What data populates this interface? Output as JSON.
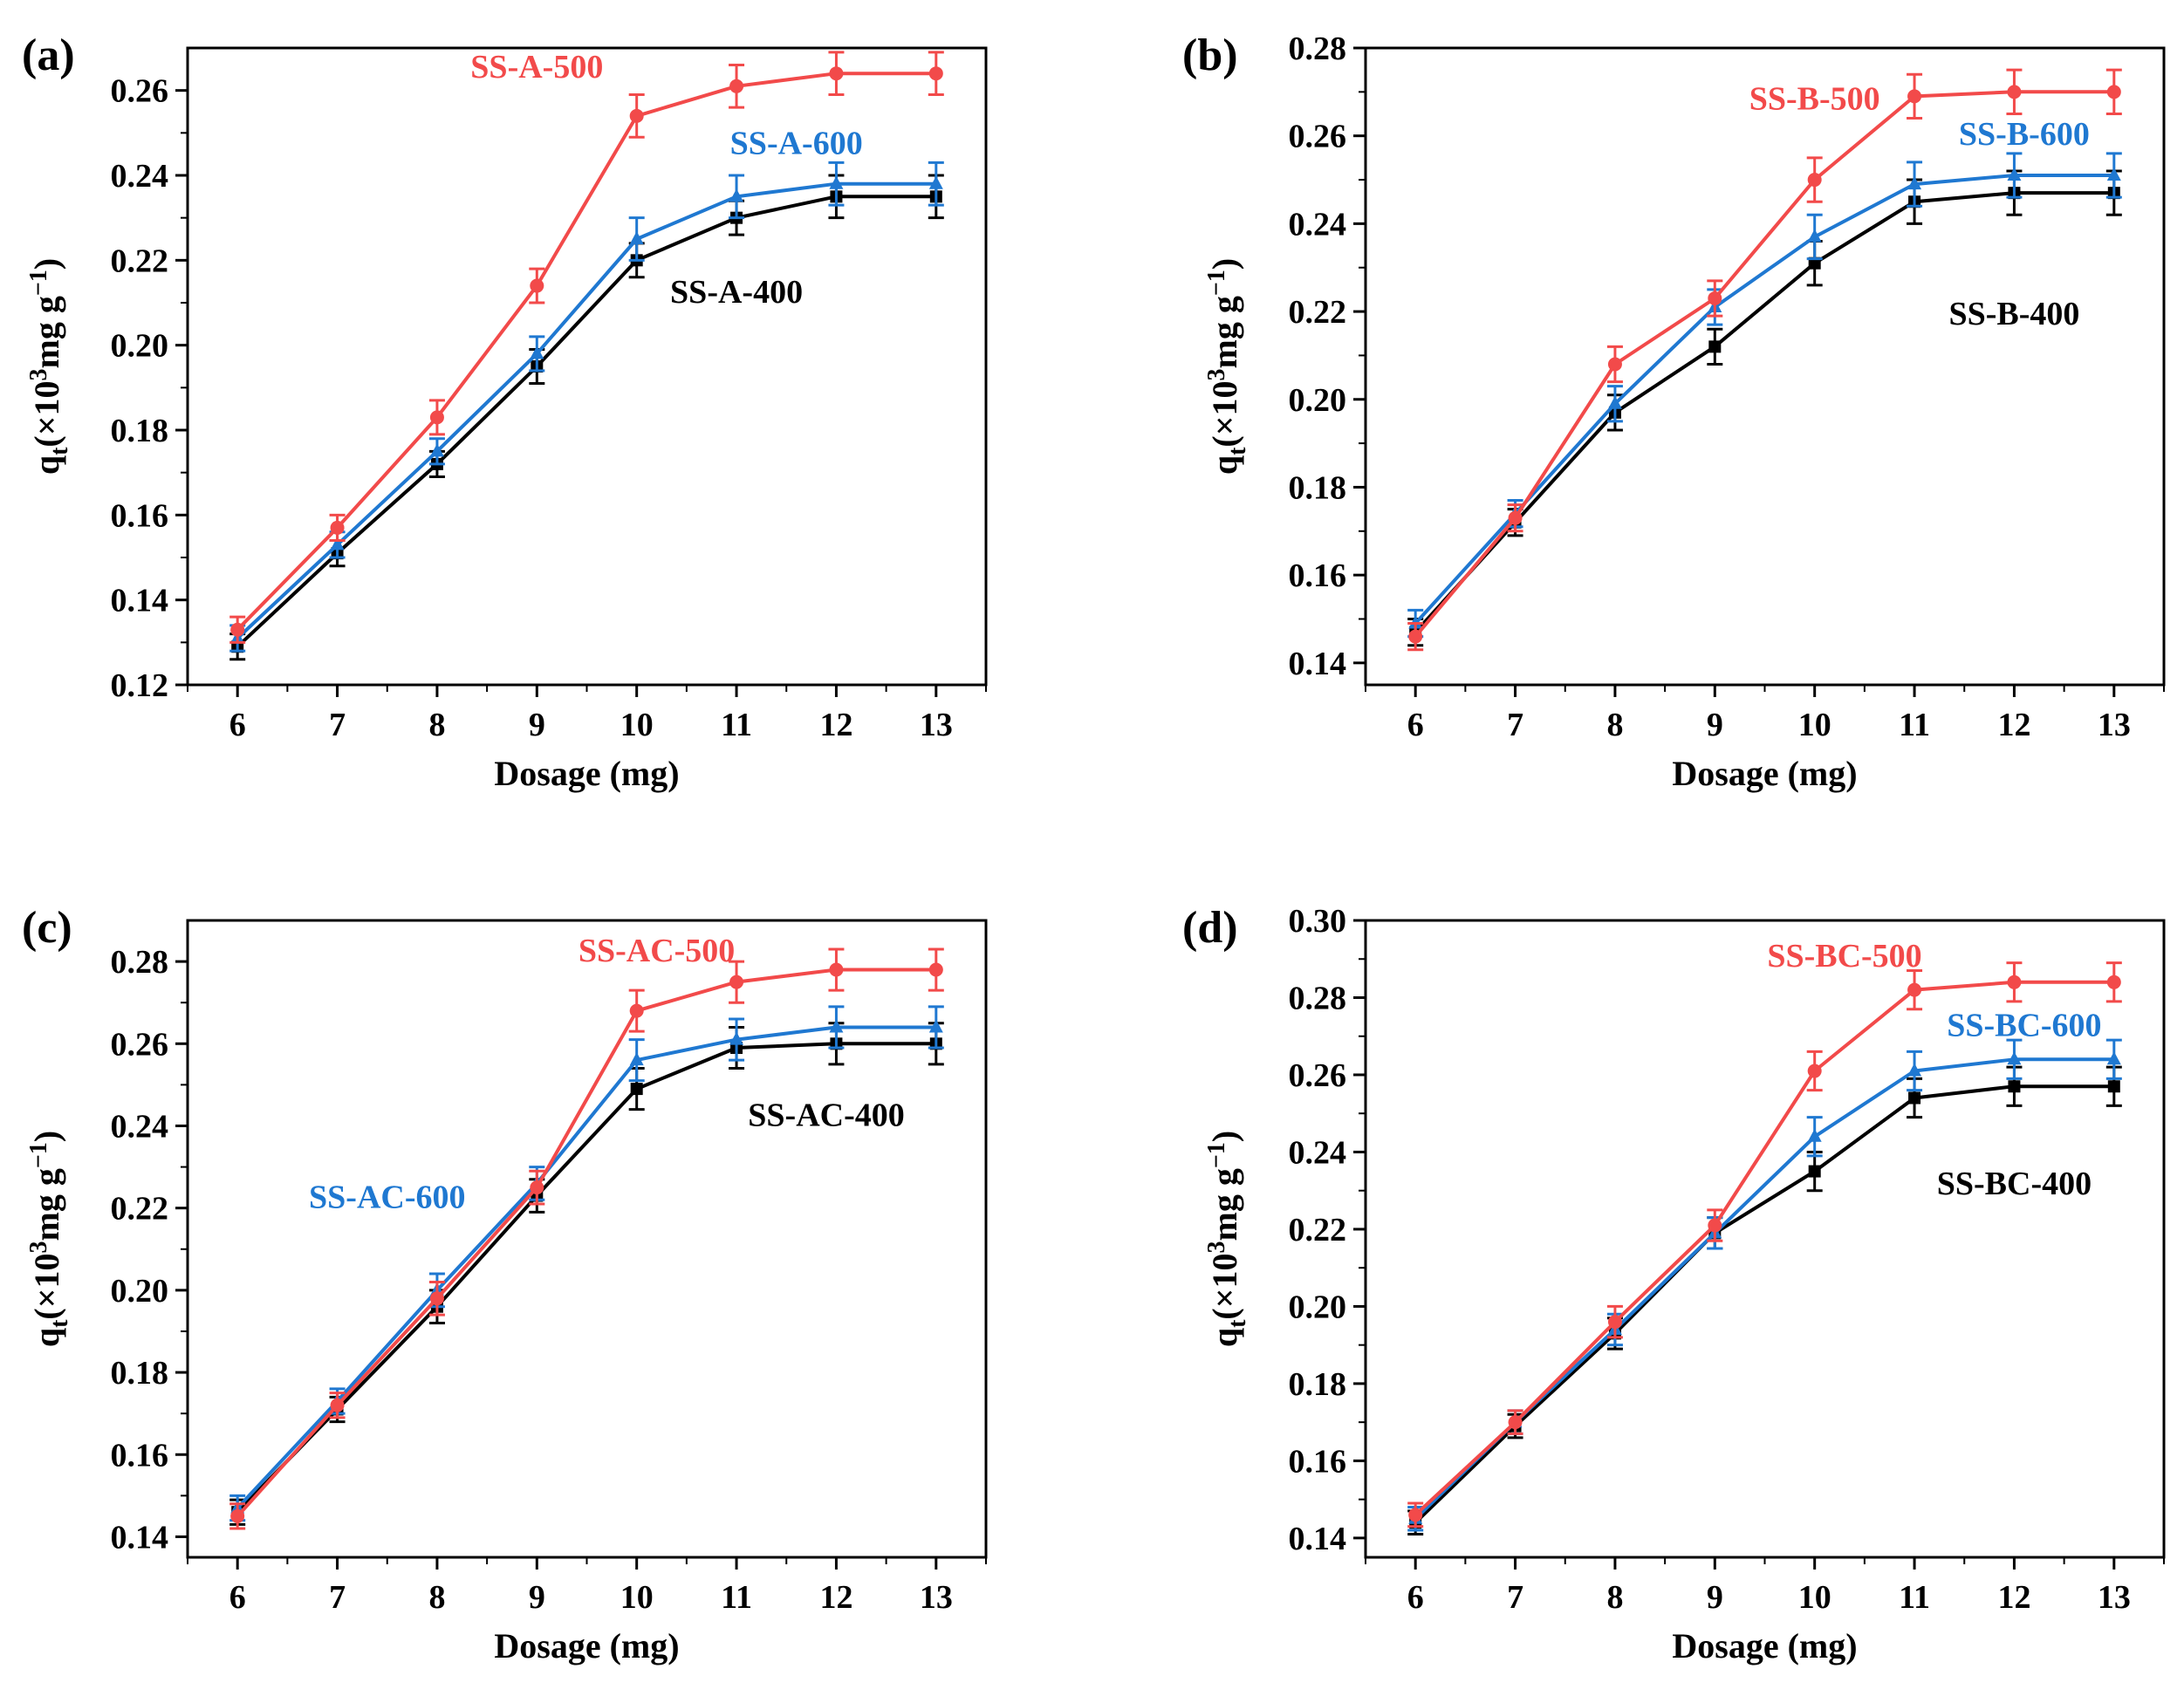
{
  "figure": {
    "colors": {
      "400": "#000000",
      "500": "#f24a4a",
      "600": "#1f78d1"
    }
  },
  "chart_data": [
    {
      "panel": "(a)",
      "type": "line",
      "xlabel": "Dosage (mg)",
      "ylabel_main": "q",
      "ylabel_sub": "t",
      "ylabel_rest": "(×10",
      "ylabel_sup": "3",
      "ylabel_unit": "mg g",
      "ylabel_exp": "−1",
      "ylabel_close": ")",
      "x": [
        6,
        7,
        8,
        9,
        10,
        11,
        12,
        13
      ],
      "xlim": [
        5.5,
        13.5
      ],
      "ylim": [
        0.12,
        0.27
      ],
      "yticks": [
        0.12,
        0.14,
        0.16,
        0.18,
        0.2,
        0.22,
        0.24,
        0.26
      ],
      "ytick_labels": [
        "0.12",
        "0.14",
        "0.16",
        "0.18",
        "0.20",
        "0.22",
        "0.24",
        "0.26"
      ],
      "series": [
        {
          "name": "SS-A-400",
          "color": "#000000",
          "marker": "square",
          "values": [
            0.129,
            0.151,
            0.172,
            0.195,
            0.22,
            0.23,
            0.235,
            0.235
          ],
          "err": [
            0.003,
            0.003,
            0.003,
            0.004,
            0.004,
            0.004,
            0.005,
            0.005
          ],
          "label_at": [
            11.0,
            0.21
          ]
        },
        {
          "name": "SS-A-500",
          "color": "#f24a4a",
          "marker": "circle",
          "values": [
            0.133,
            0.157,
            0.183,
            0.214,
            0.254,
            0.261,
            0.264,
            0.264
          ],
          "err": [
            0.003,
            0.003,
            0.004,
            0.004,
            0.005,
            0.005,
            0.005,
            0.005
          ],
          "label_at": [
            9.0,
            0.263
          ]
        },
        {
          "name": "SS-A-600",
          "color": "#1f78d1",
          "marker": "triangle",
          "values": [
            0.131,
            0.153,
            0.175,
            0.198,
            0.225,
            0.235,
            0.238,
            0.238
          ],
          "err": [
            0.003,
            0.003,
            0.003,
            0.004,
            0.005,
            0.005,
            0.005,
            0.005
          ],
          "label_at": [
            11.6,
            0.245
          ]
        }
      ]
    },
    {
      "panel": "(b)",
      "type": "line",
      "xlabel": "Dosage  (mg)",
      "ylabel_main": "q",
      "ylabel_sub": "t",
      "ylabel_rest": "(×10",
      "ylabel_sup": "3",
      "ylabel_unit": "mg g",
      "ylabel_exp": "−1",
      "ylabel_close": ")",
      "x": [
        6,
        7,
        8,
        9,
        10,
        11,
        12,
        13
      ],
      "xlim": [
        5.5,
        13.5
      ],
      "ylim": [
        0.135,
        0.28
      ],
      "yticks": [
        0.14,
        0.16,
        0.18,
        0.2,
        0.22,
        0.24,
        0.26,
        0.28
      ],
      "ytick_labels": [
        "0.14",
        "0.16",
        "0.18",
        "0.20",
        "0.22",
        "0.24",
        "0.26",
        "0.28"
      ],
      "series": [
        {
          "name": "SS-B-400",
          "color": "#000000",
          "marker": "square",
          "values": [
            0.147,
            0.172,
            0.197,
            0.212,
            0.231,
            0.245,
            0.247,
            0.247
          ],
          "err": [
            0.003,
            0.003,
            0.004,
            0.004,
            0.005,
            0.005,
            0.005,
            0.005
          ],
          "label_at": [
            12.0,
            0.217
          ]
        },
        {
          "name": "SS-B-500",
          "color": "#f24a4a",
          "marker": "circle",
          "values": [
            0.146,
            0.173,
            0.208,
            0.223,
            0.25,
            0.269,
            0.27,
            0.27
          ],
          "err": [
            0.003,
            0.003,
            0.004,
            0.004,
            0.005,
            0.005,
            0.005,
            0.005
          ],
          "label_at": [
            10.0,
            0.266
          ]
        },
        {
          "name": "SS-B-600",
          "color": "#1f78d1",
          "marker": "triangle",
          "values": [
            0.149,
            0.174,
            0.199,
            0.221,
            0.237,
            0.249,
            0.251,
            0.251
          ],
          "err": [
            0.003,
            0.003,
            0.004,
            0.004,
            0.005,
            0.005,
            0.005,
            0.005
          ],
          "label_at": [
            12.1,
            0.258
          ]
        }
      ]
    },
    {
      "panel": "(c)",
      "type": "line",
      "xlabel": "Dosage (mg)",
      "ylabel_main": "q",
      "ylabel_sub": "t",
      "ylabel_rest": "(×10",
      "ylabel_sup": "3",
      "ylabel_unit": "mg g",
      "ylabel_exp": "−1",
      "ylabel_close": ")",
      "x": [
        6,
        7,
        8,
        9,
        10,
        11,
        12,
        13
      ],
      "xlim": [
        5.5,
        13.5
      ],
      "ylim": [
        0.135,
        0.29
      ],
      "yticks": [
        0.14,
        0.16,
        0.18,
        0.2,
        0.22,
        0.24,
        0.26,
        0.28
      ],
      "ytick_labels": [
        "0.14",
        "0.16",
        "0.18",
        "0.20",
        "0.22",
        "0.24",
        "0.26",
        "0.28"
      ],
      "series": [
        {
          "name": "SS-AC-400",
          "color": "#000000",
          "marker": "square",
          "values": [
            0.146,
            0.171,
            0.196,
            0.223,
            0.249,
            0.259,
            0.26,
            0.26
          ],
          "err": [
            0.003,
            0.003,
            0.004,
            0.004,
            0.005,
            0.005,
            0.005,
            0.005
          ],
          "label_at": [
            11.9,
            0.24
          ]
        },
        {
          "name": "SS-AC-500",
          "color": "#f24a4a",
          "marker": "circle",
          "values": [
            0.145,
            0.172,
            0.198,
            0.225,
            0.268,
            0.275,
            0.278,
            0.278
          ],
          "err": [
            0.003,
            0.003,
            0.004,
            0.004,
            0.005,
            0.005,
            0.005,
            0.005
          ],
          "label_at": [
            10.2,
            0.28
          ]
        },
        {
          "name": "SS-AC-600",
          "color": "#1f78d1",
          "marker": "triangle",
          "values": [
            0.147,
            0.173,
            0.2,
            0.226,
            0.256,
            0.261,
            0.264,
            0.264
          ],
          "err": [
            0.003,
            0.003,
            0.004,
            0.004,
            0.005,
            0.005,
            0.005,
            0.005
          ],
          "label_at": [
            7.5,
            0.22
          ]
        }
      ]
    },
    {
      "panel": "(d)",
      "type": "line",
      "xlabel": "Dosage (mg)",
      "ylabel_main": "q",
      "ylabel_sub": "t",
      "ylabel_rest": "(×10",
      "ylabel_sup": "3",
      "ylabel_unit": "mg g",
      "ylabel_exp": "−1",
      "ylabel_close": ")",
      "x": [
        6,
        7,
        8,
        9,
        10,
        11,
        12,
        13
      ],
      "xlim": [
        5.5,
        13.5
      ],
      "ylim": [
        0.135,
        0.3
      ],
      "yticks": [
        0.14,
        0.16,
        0.18,
        0.2,
        0.22,
        0.24,
        0.26,
        0.28,
        0.3
      ],
      "ytick_labels": [
        "0.14",
        "0.16",
        "0.18",
        "0.20",
        "0.22",
        "0.24",
        "0.26",
        "0.28",
        "0.30"
      ],
      "series": [
        {
          "name": "SS-BC-400",
          "color": "#000000",
          "marker": "square",
          "values": [
            0.144,
            0.169,
            0.193,
            0.219,
            0.235,
            0.254,
            0.257,
            0.257
          ],
          "err": [
            0.003,
            0.003,
            0.004,
            0.004,
            0.005,
            0.005,
            0.005,
            0.005
          ],
          "label_at": [
            12.0,
            0.229
          ]
        },
        {
          "name": "SS-BC-500",
          "color": "#f24a4a",
          "marker": "circle",
          "values": [
            0.146,
            0.17,
            0.196,
            0.221,
            0.261,
            0.282,
            0.284,
            0.284
          ],
          "err": [
            0.003,
            0.003,
            0.004,
            0.004,
            0.005,
            0.005,
            0.005,
            0.005
          ],
          "label_at": [
            10.3,
            0.288
          ]
        },
        {
          "name": "SS-BC-600",
          "color": "#1f78d1",
          "marker": "triangle",
          "values": [
            0.145,
            0.17,
            0.194,
            0.219,
            0.244,
            0.261,
            0.264,
            0.264
          ],
          "err": [
            0.003,
            0.003,
            0.004,
            0.004,
            0.005,
            0.005,
            0.005,
            0.005
          ],
          "label_at": [
            12.1,
            0.27
          ]
        }
      ]
    }
  ]
}
